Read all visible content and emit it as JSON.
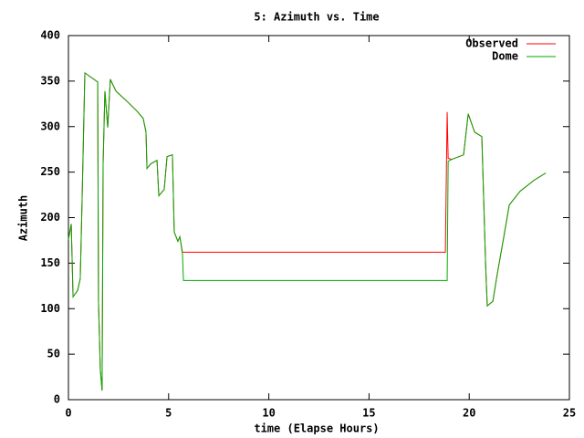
{
  "chart_data": {
    "type": "line",
    "title": "5: Azimuth vs. Time",
    "xlabel": "time (Elapse Hours)",
    "ylabel": "Azimuth",
    "x": [
      0,
      0.14,
      0.23,
      0.46,
      0.59,
      0.68,
      0.82,
      1.14,
      1.46,
      1.5,
      1.59,
      1.68,
      1.73,
      1.82,
      1.96,
      2.09,
      2.37,
      2.96,
      3.42,
      3.73,
      3.87,
      3.92,
      4.1,
      4.42,
      4.51,
      4.78,
      4.92,
      5.19,
      5.28,
      5.46,
      5.56,
      5.69,
      5.74,
      18.81,
      18.9,
      18.95,
      19.13,
      19.72,
      19.95,
      20.27,
      20.63,
      20.82,
      20.9,
      21.18,
      21.4,
      21.72,
      22.0,
      22.54,
      23.23,
      23.82
    ],
    "series": [
      {
        "name": "Observed",
        "color": "#ff0000",
        "values": [
          176,
          193,
          113,
          120,
          133,
          218,
          359,
          354,
          349,
          108,
          33,
          10,
          259,
          339,
          299,
          352,
          339,
          327,
          317,
          309,
          294,
          254,
          259,
          263,
          224,
          231,
          267,
          269,
          184,
          174,
          179,
          162,
          162,
          162,
          316,
          265,
          264,
          269,
          314,
          294,
          289,
          148,
          103,
          108,
          138,
          178,
          214,
          229,
          241,
          249
        ]
      },
      {
        "name": "Dome",
        "color": "#00aa00",
        "values": [
          176,
          193,
          113,
          120,
          133,
          218,
          359,
          354,
          349,
          108,
          33,
          10,
          259,
          339,
          299,
          352,
          339,
          327,
          317,
          309,
          294,
          254,
          259,
          263,
          224,
          231,
          267,
          269,
          184,
          174,
          179,
          160,
          131,
          131,
          131,
          262,
          264,
          269,
          314,
          294,
          289,
          148,
          103,
          108,
          138,
          178,
          214,
          229,
          241,
          249
        ]
      }
    ],
    "xlim": [
      0,
      25
    ],
    "xticks": [
      0,
      5,
      10,
      15,
      20,
      25
    ],
    "ylim": [
      0,
      400
    ],
    "yticks": [
      0,
      50,
      100,
      150,
      200,
      250,
      300,
      350,
      400
    ],
    "legend": "top-right"
  }
}
